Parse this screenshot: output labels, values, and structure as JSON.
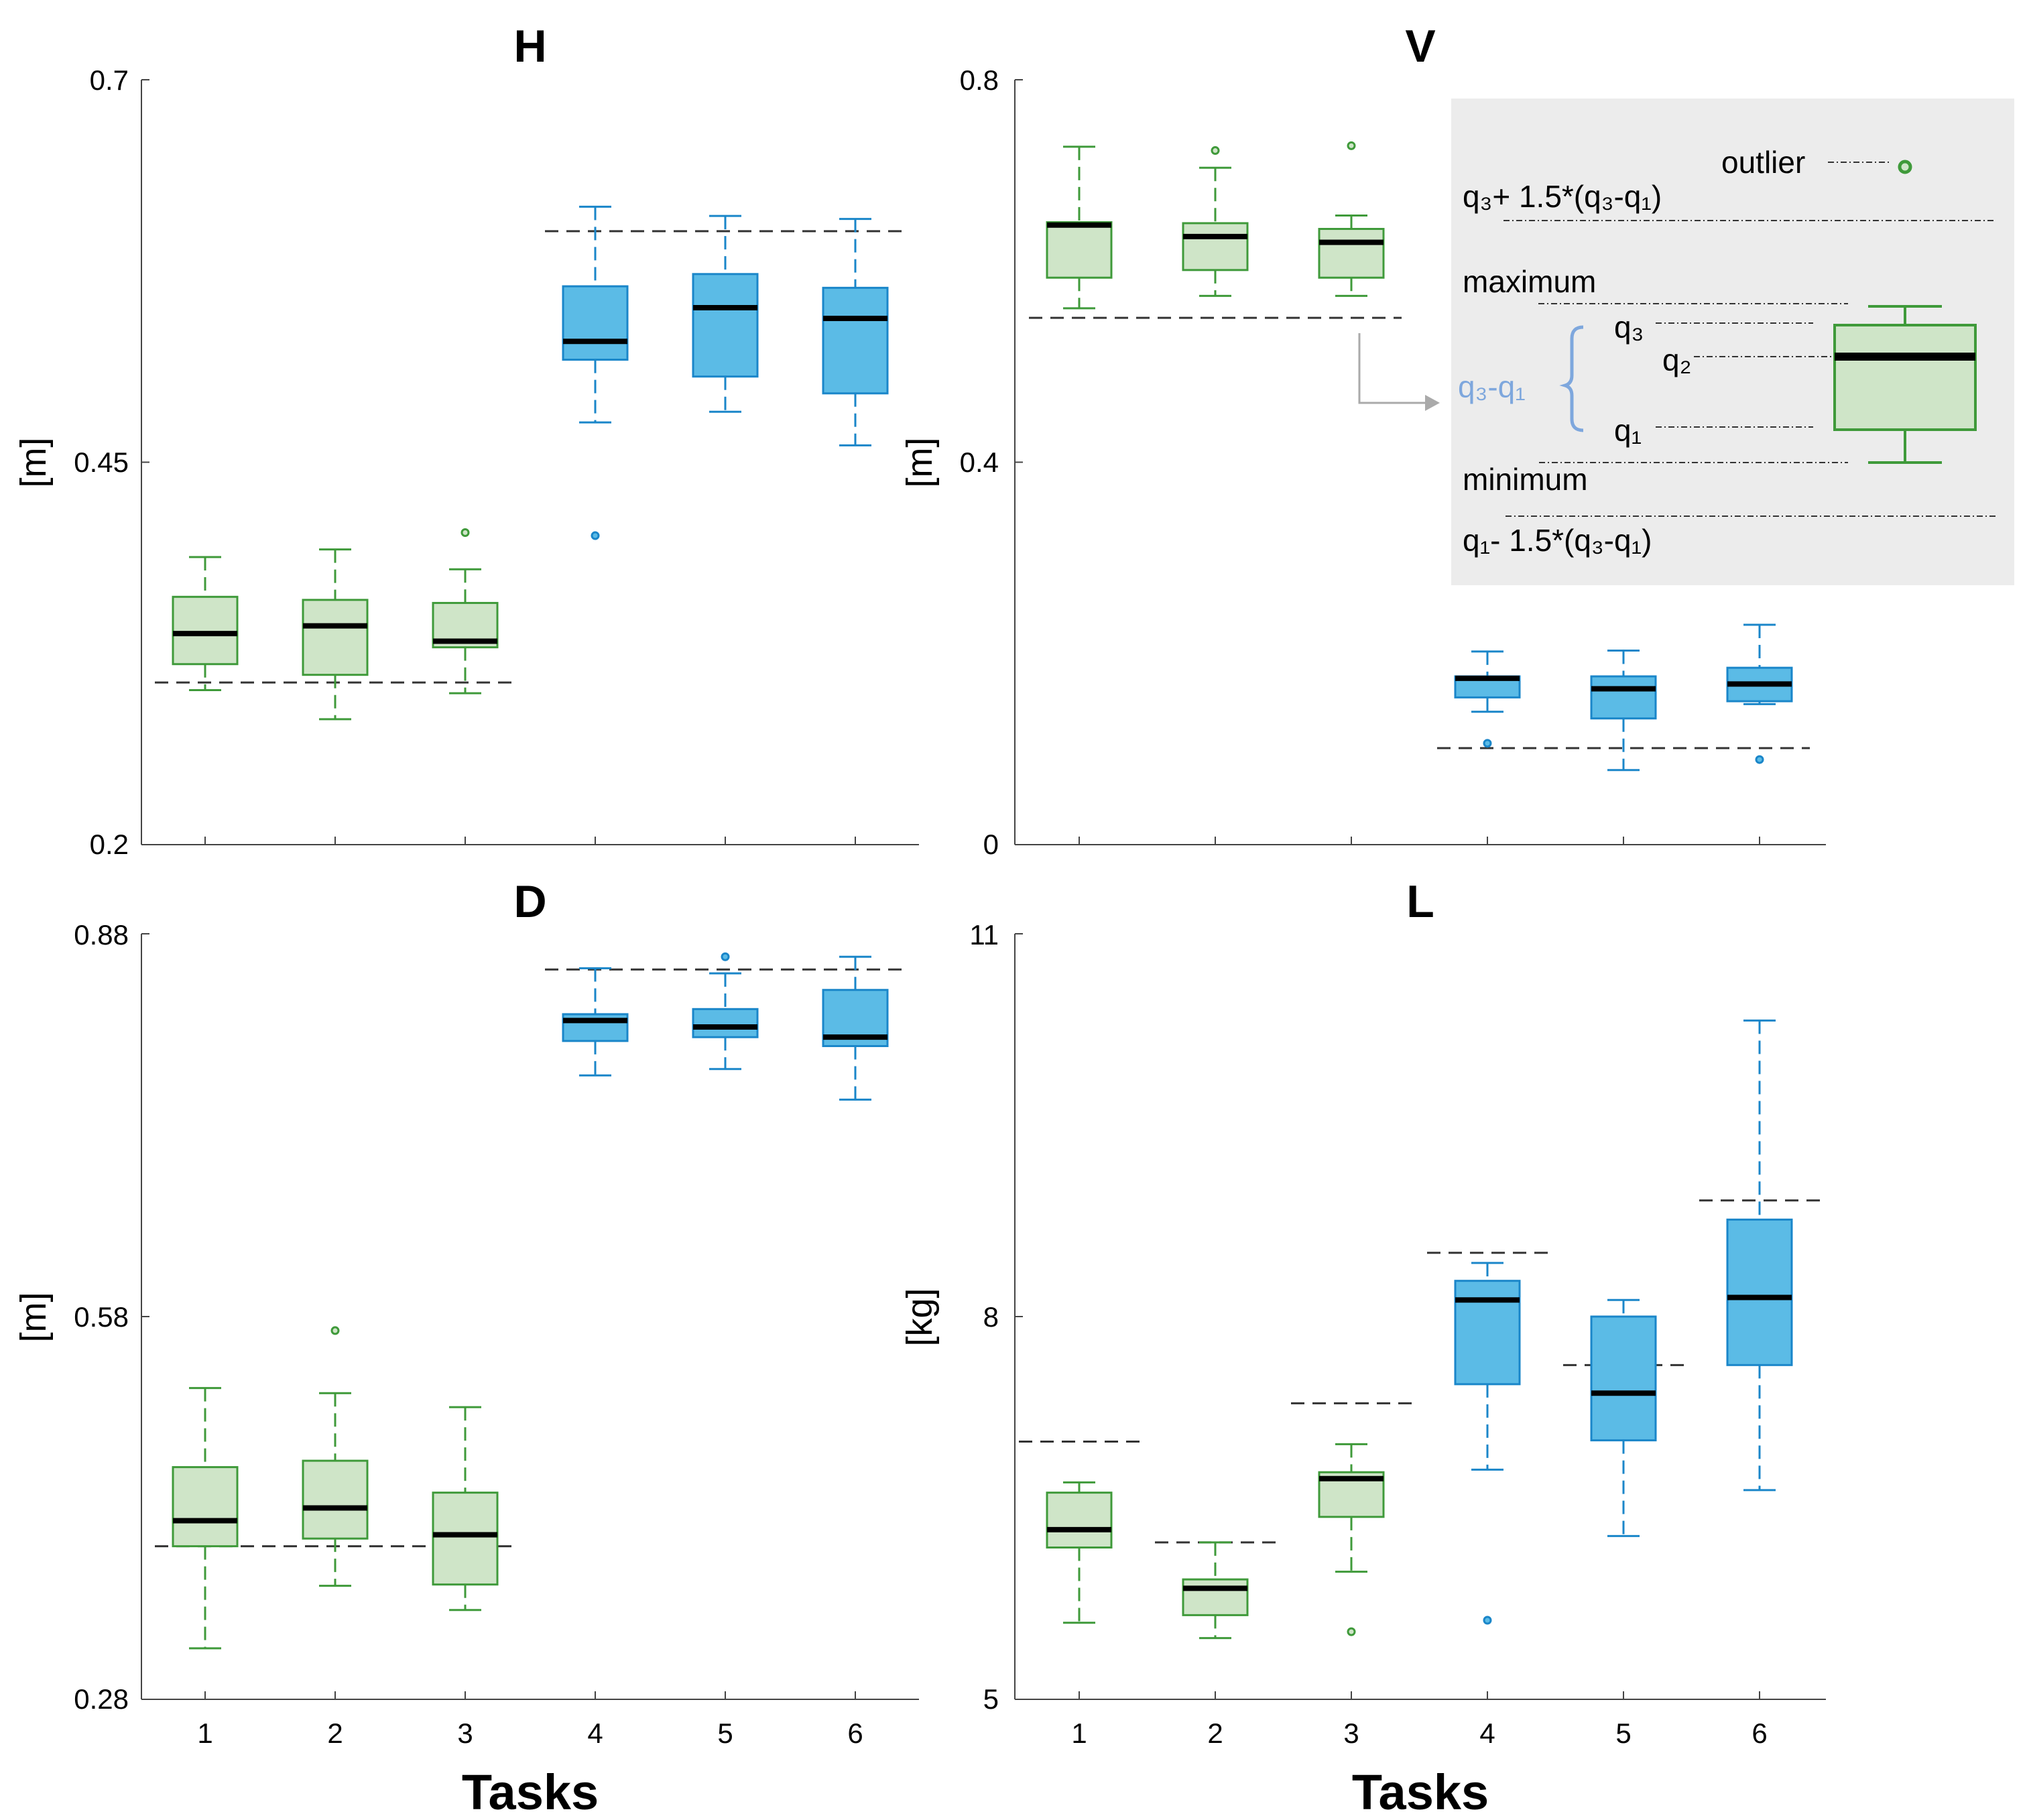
{
  "chart_data": [
    {
      "type": "box",
      "title": "H",
      "ylabel": "[m]",
      "xlabel": "",
      "ylim": [
        0.2,
        0.7
      ],
      "yticks": [
        "0.2",
        "0.45",
        "0.7"
      ],
      "categories": [
        "1",
        "2",
        "3",
        "4",
        "5",
        "6"
      ],
      "boxes": [
        {
          "task": "1",
          "min": 0.301,
          "q1": 0.318,
          "median": 0.338,
          "q3": 0.362,
          "max": 0.388,
          "outliers": []
        },
        {
          "task": "2",
          "min": 0.282,
          "q1": 0.311,
          "median": 0.343,
          "q3": 0.36,
          "max": 0.393,
          "outliers": []
        },
        {
          "task": "3",
          "min": 0.299,
          "q1": 0.329,
          "median": 0.333,
          "q3": 0.358,
          "max": 0.38,
          "outliers": [
            0.404
          ]
        },
        {
          "task": "4",
          "min": 0.476,
          "q1": 0.517,
          "median": 0.529,
          "q3": 0.565,
          "max": 0.617,
          "outliers": [
            0.402
          ]
        },
        {
          "task": "5",
          "min": 0.483,
          "q1": 0.506,
          "median": 0.551,
          "q3": 0.573,
          "max": 0.611,
          "outliers": []
        },
        {
          "task": "6",
          "min": 0.461,
          "q1": 0.495,
          "median": 0.544,
          "q3": 0.564,
          "max": 0.609,
          "outliers": []
        }
      ],
      "reference_lines": [
        {
          "value": 0.306,
          "from_task": "1",
          "to_task": "3"
        },
        {
          "value": 0.601,
          "from_task": "4",
          "to_task": "6"
        }
      ]
    },
    {
      "type": "box",
      "title": "V",
      "ylabel": "[m]",
      "xlabel": "",
      "ylim": [
        0,
        0.8
      ],
      "yticks": [
        "0",
        "0.4",
        "0.8"
      ],
      "categories": [
        "1",
        "2",
        "3",
        "4",
        "5",
        "6"
      ],
      "boxes": [
        {
          "task": "1",
          "min": 0.561,
          "q1": 0.593,
          "median": 0.648,
          "q3": 0.651,
          "max": 0.73,
          "outliers": []
        },
        {
          "task": "2",
          "min": 0.574,
          "q1": 0.601,
          "median": 0.636,
          "q3": 0.65,
          "max": 0.708,
          "outliers": [
            0.726
          ]
        },
        {
          "task": "3",
          "min": 0.574,
          "q1": 0.593,
          "median": 0.63,
          "q3": 0.644,
          "max": 0.658,
          "outliers": [
            0.731
          ]
        },
        {
          "task": "4",
          "min": 0.139,
          "q1": 0.154,
          "median": 0.174,
          "q3": 0.176,
          "max": 0.202,
          "outliers": [
            0.106
          ]
        },
        {
          "task": "5",
          "min": 0.078,
          "q1": 0.132,
          "median": 0.163,
          "q3": 0.176,
          "max": 0.203,
          "outliers": []
        },
        {
          "task": "6",
          "min": 0.147,
          "q1": 0.15,
          "median": 0.168,
          "q3": 0.185,
          "max": 0.23,
          "outliers": [
            0.089
          ]
        }
      ],
      "reference_lines": [
        {
          "value": 0.551,
          "from_task": "1",
          "to_task": "3"
        },
        {
          "value": 0.101,
          "from_task": "4",
          "to_task": "6"
        }
      ],
      "legend": {
        "outlier": "outlier",
        "upper_fence": "q₃+ 1.5*(q₃-q₁)",
        "maximum": "maximum",
        "q3": "q₃",
        "q2": "q₂",
        "iqr": "q₃-q₁",
        "q1": "q₁",
        "minimum": "minimum",
        "lower_fence": "q₁- 1.5*(q₃-q₁)"
      }
    },
    {
      "type": "box",
      "title": "D",
      "ylabel": "[m]",
      "xlabel": "Tasks",
      "ylim": [
        0.28,
        0.88
      ],
      "yticks": [
        "0.28",
        "0.58",
        "0.88"
      ],
      "categories": [
        "1",
        "2",
        "3",
        "4",
        "5",
        "6"
      ],
      "boxes": [
        {
          "task": "1",
          "min": 0.32,
          "q1": 0.4,
          "median": 0.42,
          "q3": 0.462,
          "max": 0.524,
          "outliers": []
        },
        {
          "task": "2",
          "min": 0.369,
          "q1": 0.406,
          "median": 0.43,
          "q3": 0.467,
          "max": 0.52,
          "outliers": [
            0.569
          ]
        },
        {
          "task": "3",
          "min": 0.35,
          "q1": 0.37,
          "median": 0.409,
          "q3": 0.442,
          "max": 0.509,
          "outliers": []
        },
        {
          "task": "4",
          "min": 0.769,
          "q1": 0.796,
          "median": 0.812,
          "q3": 0.817,
          "max": 0.853,
          "outliers": []
        },
        {
          "task": "5",
          "min": 0.774,
          "q1": 0.799,
          "median": 0.807,
          "q3": 0.821,
          "max": 0.849,
          "outliers": [
            0.862
          ]
        },
        {
          "task": "6",
          "min": 0.75,
          "q1": 0.792,
          "median": 0.799,
          "q3": 0.836,
          "max": 0.862,
          "outliers": []
        }
      ],
      "reference_lines": [
        {
          "value": 0.4,
          "from_task": "1",
          "to_task": "3"
        },
        {
          "value": 0.852,
          "from_task": "4",
          "to_task": "6"
        }
      ]
    },
    {
      "type": "box",
      "title": "L",
      "ylabel": "[kg]",
      "xlabel": "Tasks",
      "ylim": [
        5,
        11
      ],
      "yticks": [
        "5",
        "8",
        "11"
      ],
      "categories": [
        "1",
        "2",
        "3",
        "4",
        "5",
        "6"
      ],
      "boxes": [
        {
          "task": "1",
          "min": 5.6,
          "q1": 6.19,
          "median": 6.33,
          "q3": 6.62,
          "max": 6.7,
          "outliers": []
        },
        {
          "task": "2",
          "min": 5.48,
          "q1": 5.66,
          "median": 5.87,
          "q3": 5.94,
          "max": 6.23,
          "outliers": []
        },
        {
          "task": "3",
          "min": 6.0,
          "q1": 6.43,
          "median": 6.73,
          "q3": 6.78,
          "max": 7.0,
          "outliers": [
            5.53
          ]
        },
        {
          "task": "4",
          "min": 6.8,
          "q1": 7.47,
          "median": 8.13,
          "q3": 8.28,
          "max": 8.42,
          "outliers": [
            5.62
          ]
        },
        {
          "task": "5",
          "min": 6.28,
          "q1": 7.03,
          "median": 7.4,
          "q3": 8.0,
          "max": 8.13,
          "outliers": []
        },
        {
          "task": "6",
          "min": 6.64,
          "q1": 7.62,
          "median": 8.15,
          "q3": 8.76,
          "max": 10.32,
          "outliers": []
        }
      ],
      "reference_lines": [
        {
          "value": 7.02,
          "from_task": "1",
          "to_task": "1"
        },
        {
          "value": 6.23,
          "from_task": "2",
          "to_task": "2"
        },
        {
          "value": 7.32,
          "from_task": "3",
          "to_task": "3"
        },
        {
          "value": 8.5,
          "from_task": "4",
          "to_task": "4"
        },
        {
          "value": 7.62,
          "from_task": "5",
          "to_task": "5"
        },
        {
          "value": 8.91,
          "from_task": "6",
          "to_task": "6"
        }
      ]
    }
  ],
  "colors": {
    "green_fill": "#cfe5c8",
    "green_stroke": "#3f9a3a",
    "blue_fill": "#5bbbe6",
    "blue_stroke": "#1a86c9",
    "median": "#000000",
    "ref_line": "#333333",
    "legend_bg": "#ececec",
    "iqr_label": "#7ea7dd"
  }
}
